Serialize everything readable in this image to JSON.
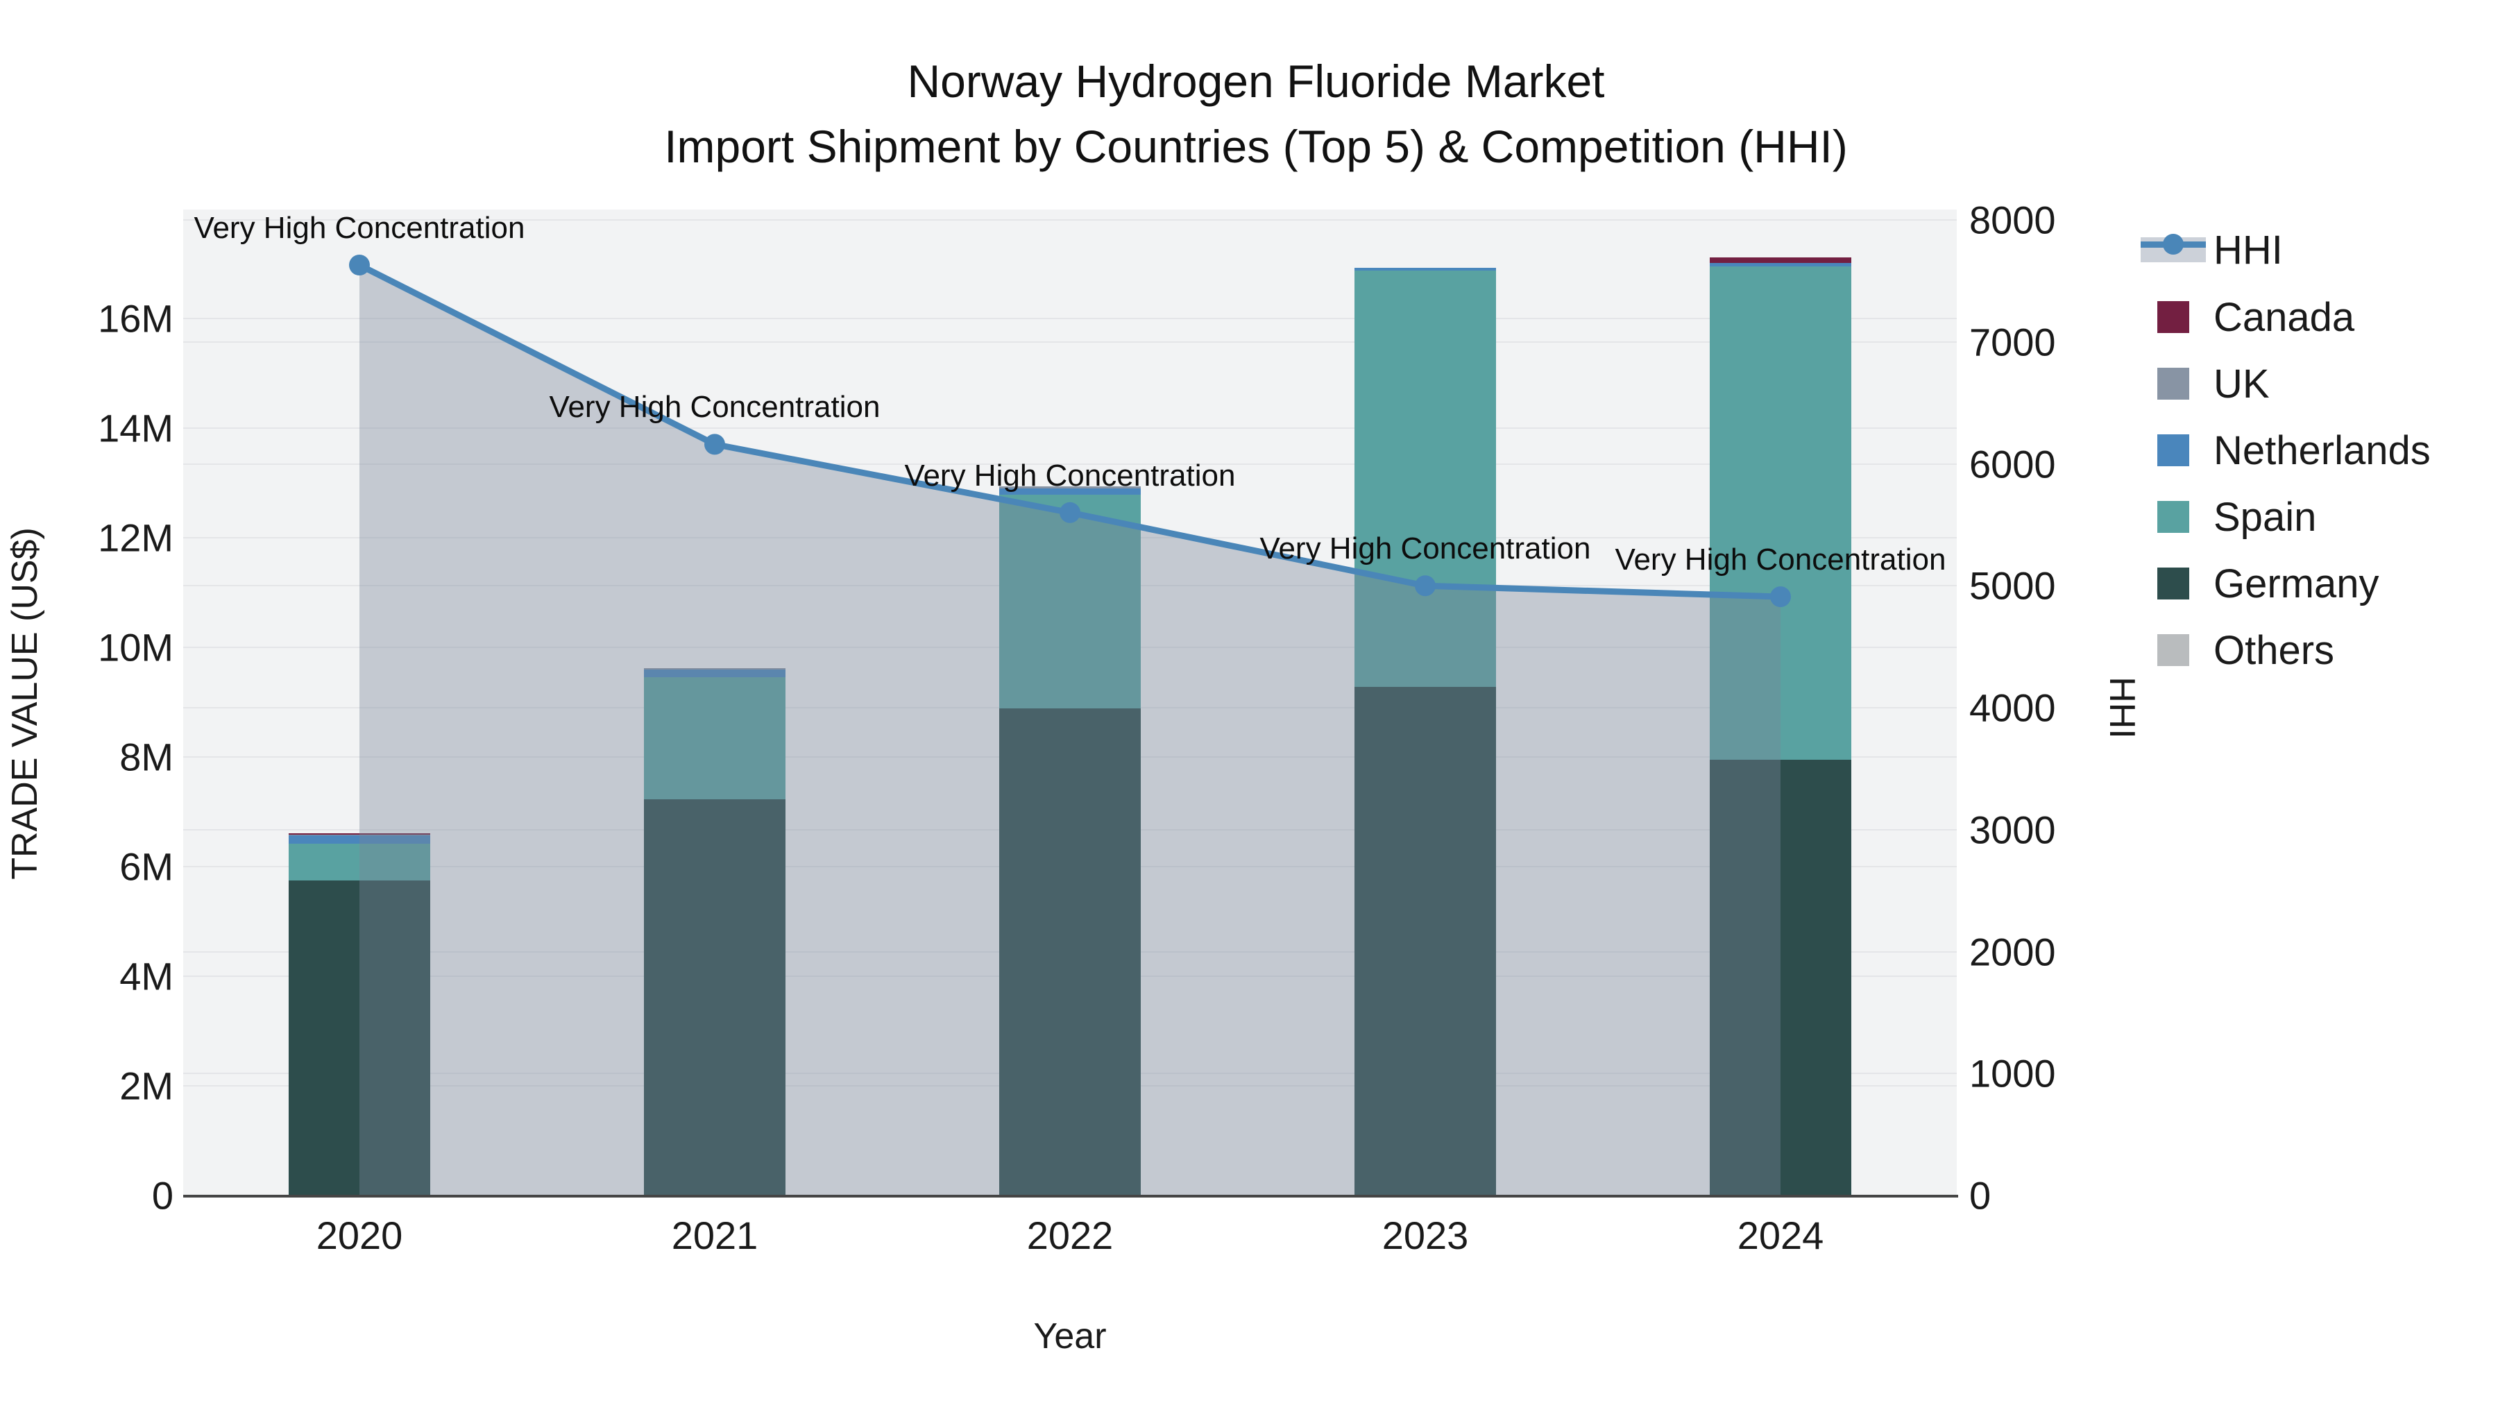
{
  "title": {
    "line1": "Norway Hydrogen Fluoride Market",
    "line2": "Import Shipment by Countries (Top 5) & Competition (HHI)"
  },
  "axes": {
    "left": {
      "title": "TRADE VALUE (US$)",
      "ticks": [
        "0",
        "2M",
        "4M",
        "6M",
        "8M",
        "10M",
        "12M",
        "14M",
        "16M"
      ]
    },
    "right": {
      "title": "HHI",
      "ticks": [
        "0",
        "1000",
        "2000",
        "3000",
        "4000",
        "5000",
        "6000",
        "7000",
        "8000"
      ]
    },
    "x": {
      "title": "Year",
      "ticks": [
        "2020",
        "2021",
        "2022",
        "2023",
        "2024"
      ]
    }
  },
  "legend": {
    "items": [
      {
        "id": "hhi",
        "label": "HHI",
        "type": "line",
        "color": "#4a86b8"
      },
      {
        "id": "canada",
        "label": "Canada",
        "type": "swatch",
        "color": "#731f41"
      },
      {
        "id": "uk",
        "label": "UK",
        "type": "swatch",
        "color": "#8894a4"
      },
      {
        "id": "netherlands",
        "label": "Netherlands",
        "type": "swatch",
        "color": "#4a86bc"
      },
      {
        "id": "spain",
        "label": "Spain",
        "type": "swatch",
        "color": "#59a2a1"
      },
      {
        "id": "germany",
        "label": "Germany",
        "type": "swatch",
        "color": "#2d4d4c"
      },
      {
        "id": "others",
        "label": "Others",
        "type": "swatch",
        "color": "#b9bcbe"
      }
    ]
  },
  "colors": {
    "Germany": "#2d4d4c",
    "Spain": "#59a2a1",
    "Netherlands": "#4a86bc",
    "UK": "#8894a4",
    "Canada": "#731f41",
    "Others": "#b9bcbe",
    "hhi_line": "#4a86b8",
    "hhi_area_fill": "rgba(121,133,153,0.38)",
    "plot_background": "#f2f3f4",
    "gridline": "#e4e5e8",
    "axis_line": "#454545"
  },
  "chart_data": {
    "type": "bar",
    "subtype": "stacked-bars-with-line-dual-axis",
    "title": "Norway Hydrogen Fluoride Market — Import Shipment by Countries (Top 5) & Competition (HHI)",
    "xlabel": "Year",
    "ylabel_left": "TRADE VALUE (US$)",
    "ylabel_right": "HHI",
    "ylim_left": [
      0,
      18000000
    ],
    "ylim_right": [
      0,
      8000
    ],
    "grid": true,
    "legend_position": "right",
    "categories": [
      "2020",
      "2021",
      "2022",
      "2023",
      "2024"
    ],
    "series": [
      {
        "name": "Germany",
        "values": [
          5750000,
          7230000,
          8890000,
          9280000,
          7950000
        ]
      },
      {
        "name": "Spain",
        "values": [
          670000,
          2230000,
          3900000,
          7590000,
          9000000
        ]
      },
      {
        "name": "Netherlands",
        "values": [
          150000,
          140000,
          110000,
          50000,
          60000
        ]
      },
      {
        "name": "UK",
        "values": [
          10000,
          25000,
          40000,
          0,
          0
        ]
      },
      {
        "name": "Canada",
        "values": [
          25000,
          0,
          0,
          0,
          100000
        ]
      },
      {
        "name": "Others",
        "values": [
          0,
          0,
          0,
          0,
          0
        ]
      }
    ],
    "line_series": {
      "name": "HHI",
      "axis": "right",
      "values": [
        7630,
        6160,
        5600,
        5000,
        4910
      ]
    },
    "annotations": [
      {
        "x": "2020",
        "text": "Very High Concentration"
      },
      {
        "x": "2021",
        "text": "Very High Concentration"
      },
      {
        "x": "2022",
        "text": "Very High Concentration"
      },
      {
        "x": "2023",
        "text": "Very High Concentration"
      },
      {
        "x": "2024",
        "text": "Very High Concentration"
      }
    ]
  }
}
